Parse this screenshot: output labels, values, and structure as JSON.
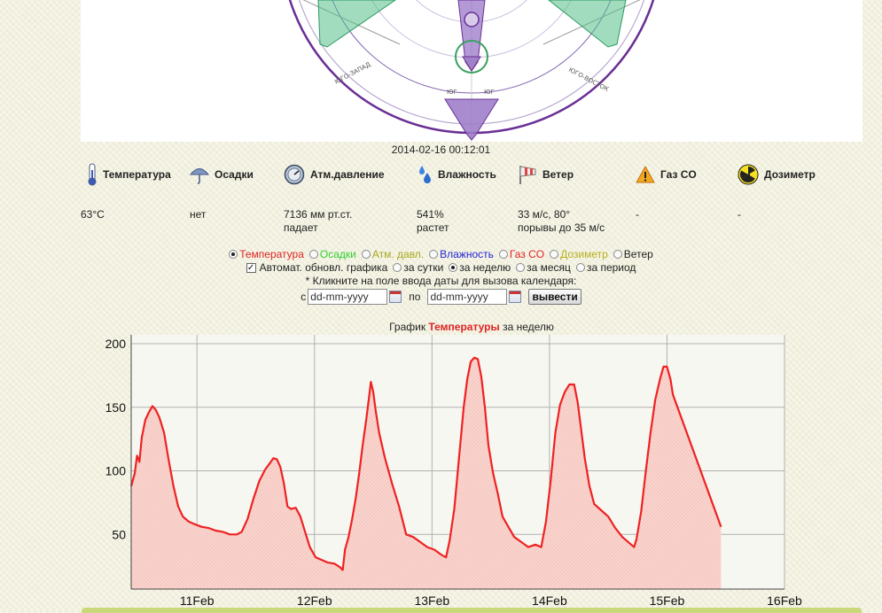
{
  "compass": {
    "labels": {
      "sw": "ЮГО-ЗАПАД",
      "se": "ЮГО-ВОСТОК",
      "s1": "ЮГ",
      "s2": "ЮГ"
    }
  },
  "timestamp": "2014-02-16 00:12:01",
  "sensors": [
    {
      "key": "temp",
      "icon": "thermometer-icon",
      "label": "Температура",
      "value": "63°C",
      "sub": ""
    },
    {
      "key": "precip",
      "icon": "umbrella-icon",
      "label": "Осадки",
      "value": "нет",
      "sub": ""
    },
    {
      "key": "pressure",
      "icon": "barometer-icon",
      "label": "Атм.давление",
      "value": "7136 мм рт.ст.",
      "sub": "падает"
    },
    {
      "key": "humidity",
      "icon": "water-drops-icon",
      "label": "Влажность",
      "value": "541%",
      "sub": "растет"
    },
    {
      "key": "wind",
      "icon": "windsock-icon",
      "label": "Ветер",
      "value": "33 м/с, 80°",
      "sub": "порывы до 35 м/с"
    },
    {
      "key": "gas",
      "icon": "warning-icon",
      "label": "Газ CO",
      "value": "-",
      "sub": ""
    },
    {
      "key": "dosimeter",
      "icon": "radiation-icon",
      "label": "Дозиметр",
      "value": "-",
      "sub": ""
    }
  ],
  "controls": {
    "series_options": [
      {
        "label": "Температура",
        "color": "#e02424",
        "selected": true
      },
      {
        "label": "Осадки",
        "color": "#2fcf2f",
        "selected": false
      },
      {
        "label": "Атм. давл.",
        "color": "#a8a820",
        "selected": false
      },
      {
        "label": "Влажность",
        "color": "#2323d8",
        "selected": false
      },
      {
        "label": "Газ CO",
        "color": "#e02424",
        "selected": false
      },
      {
        "label": "Дозиметр",
        "color": "#b8b020",
        "selected": false
      },
      {
        "label": "Ветер",
        "color": "#222222",
        "selected": false
      }
    ],
    "auto_update_label": "Автомат. обновл. графика",
    "auto_update_checked": true,
    "period_options": [
      {
        "label": "за сутки",
        "selected": false
      },
      {
        "label": "за неделю",
        "selected": true
      },
      {
        "label": "за месяц",
        "selected": false
      },
      {
        "label": "за период",
        "selected": false
      }
    ],
    "calendar_hint": "* Кликните на поле ввода даты для вызова календаря:",
    "from_label": "с",
    "from_value": "dd-mm-yyyy",
    "to_label": "по",
    "to_value": "dd-mm-yyyy",
    "submit_label": "вывести"
  },
  "chart_title": {
    "prefix": "График ",
    "highlight": "Температуры",
    "suffix": " за неделю"
  },
  "chart_data": {
    "type": "area",
    "x_ticks": [
      "11Feb",
      "12Feb",
      "13Feb",
      "14Feb",
      "15Feb",
      "16Feb"
    ],
    "x_tick_days": [
      11,
      12,
      13,
      14,
      15,
      16
    ],
    "xlim": [
      10.44,
      16.0
    ],
    "ylim": [
      7,
      207
    ],
    "y_ticks": [
      50,
      100,
      150,
      200
    ],
    "grid": true,
    "line_color": "#ee2222",
    "fill_color": "#f9d5cf",
    "points": [
      [
        10.44,
        88
      ],
      [
        10.47,
        98
      ],
      [
        10.49,
        112
      ],
      [
        10.51,
        107
      ],
      [
        10.53,
        126
      ],
      [
        10.56,
        140
      ],
      [
        10.59,
        146
      ],
      [
        10.62,
        151
      ],
      [
        10.65,
        148
      ],
      [
        10.68,
        142
      ],
      [
        10.72,
        130
      ],
      [
        10.76,
        108
      ],
      [
        10.8,
        88
      ],
      [
        10.84,
        72
      ],
      [
        10.88,
        64
      ],
      [
        10.93,
        60
      ],
      [
        10.98,
        58
      ],
      [
        11.04,
        56
      ],
      [
        11.1,
        55
      ],
      [
        11.16,
        53
      ],
      [
        11.22,
        52
      ],
      [
        11.28,
        50
      ],
      [
        11.34,
        50
      ],
      [
        11.38,
        52
      ],
      [
        11.43,
        62
      ],
      [
        11.48,
        78
      ],
      [
        11.53,
        92
      ],
      [
        11.58,
        101
      ],
      [
        11.62,
        106
      ],
      [
        11.65,
        110
      ],
      [
        11.68,
        109
      ],
      [
        11.71,
        103
      ],
      [
        11.74,
        90
      ],
      [
        11.77,
        72
      ],
      [
        11.8,
        70
      ],
      [
        11.84,
        71
      ],
      [
        11.88,
        64
      ],
      [
        11.92,
        52
      ],
      [
        11.96,
        40
      ],
      [
        12.01,
        32
      ],
      [
        12.06,
        30
      ],
      [
        12.11,
        28
      ],
      [
        12.17,
        27
      ],
      [
        12.22,
        24
      ],
      [
        12.24,
        22
      ],
      [
        12.26,
        38
      ],
      [
        12.29,
        48
      ],
      [
        12.32,
        62
      ],
      [
        12.35,
        78
      ],
      [
        12.38,
        98
      ],
      [
        12.41,
        120
      ],
      [
        12.44,
        140
      ],
      [
        12.46,
        155
      ],
      [
        12.48,
        170
      ],
      [
        12.5,
        162
      ],
      [
        12.52,
        148
      ],
      [
        12.55,
        130
      ],
      [
        12.6,
        110
      ],
      [
        12.66,
        90
      ],
      [
        12.72,
        72
      ],
      [
        12.78,
        50
      ],
      [
        12.84,
        48
      ],
      [
        12.9,
        44
      ],
      [
        12.96,
        40
      ],
      [
        13.02,
        38
      ],
      [
        13.08,
        34
      ],
      [
        13.12,
        32
      ],
      [
        13.15,
        45
      ],
      [
        13.19,
        70
      ],
      [
        13.23,
        110
      ],
      [
        13.27,
        150
      ],
      [
        13.3,
        172
      ],
      [
        13.33,
        186
      ],
      [
        13.36,
        189
      ],
      [
        13.39,
        188
      ],
      [
        13.42,
        174
      ],
      [
        13.45,
        150
      ],
      [
        13.48,
        120
      ],
      [
        13.52,
        98
      ],
      [
        13.56,
        82
      ],
      [
        13.6,
        64
      ],
      [
        13.65,
        56
      ],
      [
        13.7,
        48
      ],
      [
        13.76,
        44
      ],
      [
        13.82,
        40
      ],
      [
        13.88,
        42
      ],
      [
        13.93,
        40
      ],
      [
        13.97,
        60
      ],
      [
        14.01,
        92
      ],
      [
        14.05,
        130
      ],
      [
        14.09,
        152
      ],
      [
        14.13,
        162
      ],
      [
        14.17,
        168
      ],
      [
        14.21,
        168
      ],
      [
        14.24,
        154
      ],
      [
        14.27,
        132
      ],
      [
        14.3,
        110
      ],
      [
        14.34,
        88
      ],
      [
        14.38,
        74
      ],
      [
        14.44,
        69
      ],
      [
        14.5,
        64
      ],
      [
        14.56,
        55
      ],
      [
        14.62,
        48
      ],
      [
        14.67,
        44
      ],
      [
        14.72,
        40
      ],
      [
        14.74,
        46
      ],
      [
        14.78,
        68
      ],
      [
        14.82,
        100
      ],
      [
        14.86,
        130
      ],
      [
        14.9,
        156
      ],
      [
        14.94,
        172
      ],
      [
        14.97,
        182
      ],
      [
        15.0,
        182
      ],
      [
        15.03,
        172
      ],
      [
        15.05,
        160
      ],
      [
        15.46,
        56
      ]
    ]
  }
}
